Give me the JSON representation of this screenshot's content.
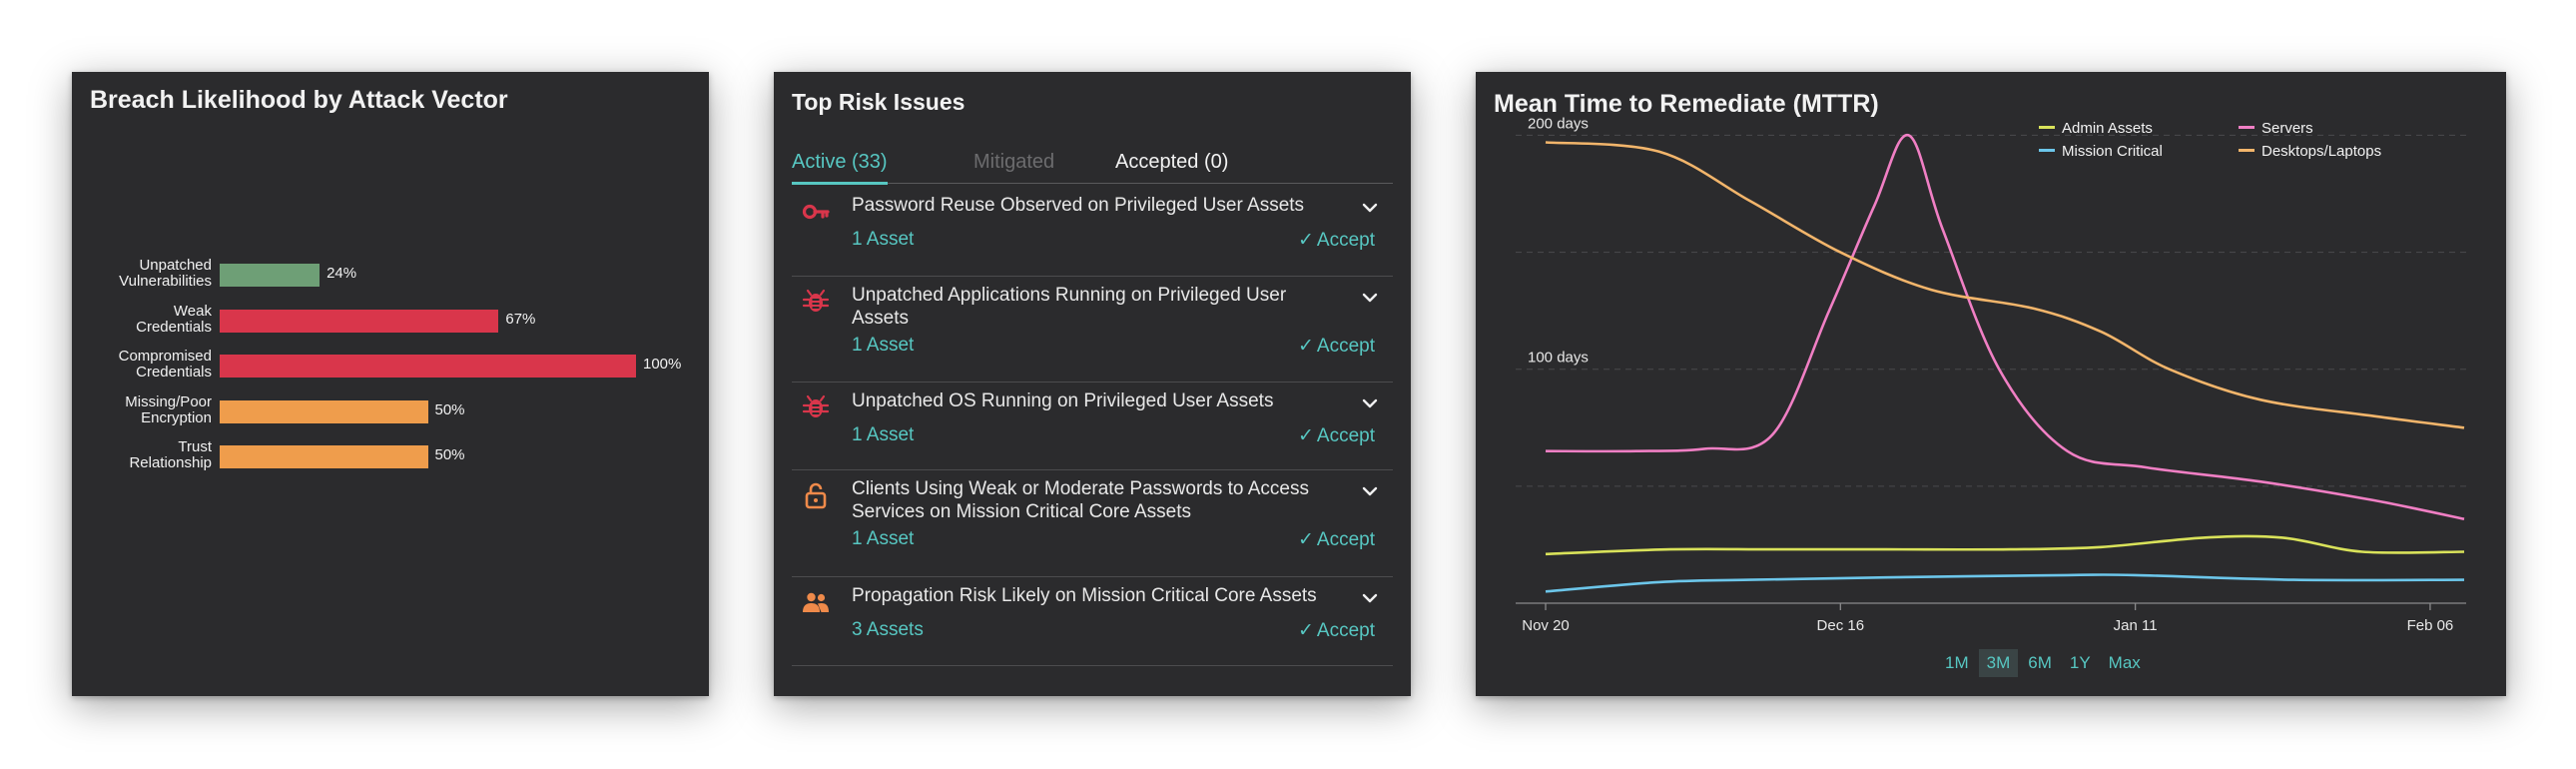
{
  "breach": {
    "title": "Breach Likelihood by Attack Vector",
    "chart_data": {
      "type": "bar",
      "orientation": "horizontal",
      "categories": [
        [
          "Unpatched",
          "Vulnerabilities"
        ],
        [
          "Weak",
          "Credentials"
        ],
        [
          "Compromised",
          "Credentials"
        ],
        [
          "Missing/Poor",
          "Encryption"
        ],
        [
          "Trust",
          "Relationship"
        ]
      ],
      "values": [
        24,
        67,
        100,
        50,
        50
      ],
      "value_labels": [
        "24%",
        "67%",
        "100%",
        "50%",
        "50%"
      ],
      "colors": [
        "#6e9f76",
        "#d9364b",
        "#d9364b",
        "#ef9d4c",
        "#ef9d4c"
      ],
      "xlim": [
        0,
        100
      ]
    }
  },
  "risk": {
    "title": "Top Risk Issues",
    "tabs": [
      {
        "label": "Active (33)",
        "state": "active"
      },
      {
        "label": "Mitigated",
        "state": "disabled"
      },
      {
        "label": "Accepted (0)",
        "state": "normal"
      }
    ],
    "accept_label": "Accept",
    "issues": [
      {
        "icon": "key-icon",
        "icon_color": "#d9364b",
        "title": "Password Reuse Observed on Privileged User Assets",
        "assets": "1 Asset"
      },
      {
        "icon": "bug-icon",
        "icon_color": "#d9364b",
        "title": "Unpatched Applications Running on Privileged User Assets",
        "assets": "1 Asset"
      },
      {
        "icon": "bug-icon",
        "icon_color": "#d9364b",
        "title": "Unpatched OS Running on Privileged User Assets",
        "assets": "1 Asset"
      },
      {
        "icon": "lock-open-icon",
        "icon_color": "#ef8a4a",
        "title": "Clients Using Weak or Moderate Passwords to Access Services on Mission Critical Core Assets",
        "assets": "1 Asset"
      },
      {
        "icon": "people-icon",
        "icon_color": "#ef8a4a",
        "title": "Propagation Risk Likely on Mission Critical Core Assets",
        "assets": "3 Assets"
      }
    ]
  },
  "mttr": {
    "title": "Mean Time to Remediate (MTTR)",
    "range_buttons": [
      {
        "label": "1M",
        "selected": false
      },
      {
        "label": "3M",
        "selected": true
      },
      {
        "label": "6M",
        "selected": false
      },
      {
        "label": "1Y",
        "selected": false
      },
      {
        "label": "Max",
        "selected": false
      }
    ],
    "chart_data": {
      "type": "line",
      "x_tick_labels": [
        "Nov 20",
        "Dec 16",
        "Jan 11",
        "Feb 06"
      ],
      "y_tick_labels": [
        "200 days",
        "100 days"
      ],
      "x_ticks": [
        "2023-11-20",
        "2023-12-16",
        "2024-01-11",
        "2024-02-06"
      ],
      "y_ticks": [
        200,
        100
      ],
      "xlim": [
        "2023-11-20",
        "2024-02-09"
      ],
      "ylim": [
        0,
        210
      ],
      "grid": true,
      "legend_position": "top-right",
      "series": [
        {
          "name": "Admin Assets",
          "color": "#d9e25a",
          "x": [
            "2023-11-20",
            "2023-12-01",
            "2023-12-10",
            "2023-12-20",
            "2023-12-31",
            "2024-01-08",
            "2024-01-17",
            "2024-01-24",
            "2024-01-31",
            "2024-02-09"
          ],
          "y": [
            21,
            23,
            23,
            23,
            23,
            24,
            28,
            28,
            22,
            22
          ]
        },
        {
          "name": "Servers",
          "color": "#f07fc4",
          "x": [
            "2023-11-20",
            "2023-11-28",
            "2023-12-04",
            "2023-12-10",
            "2023-12-15",
            "2023-12-19",
            "2023-12-22",
            "2023-12-25",
            "2023-12-30",
            "2024-01-05",
            "2024-01-12",
            "2024-01-22",
            "2024-02-01",
            "2024-02-09"
          ],
          "y": [
            65,
            65,
            66,
            72,
            125,
            170,
            200,
            160,
            100,
            65,
            58,
            52,
            44,
            36
          ]
        },
        {
          "name": "Mission Critical",
          "color": "#6cc6ea",
          "x": [
            "2023-11-20",
            "2023-11-30",
            "2023-12-08",
            "2023-12-20",
            "2024-01-05",
            "2024-01-11",
            "2024-01-25",
            "2024-02-09"
          ],
          "y": [
            5,
            9,
            10,
            11,
            12,
            12,
            10,
            10
          ]
        },
        {
          "name": "Desktops/Laptops",
          "color": "#f2b56b",
          "x": [
            "2023-11-20",
            "2023-11-30",
            "2023-12-08",
            "2023-12-16",
            "2023-12-24",
            "2024-01-02",
            "2024-01-08",
            "2024-01-14",
            "2024-01-22",
            "2024-02-01",
            "2024-02-09"
          ],
          "y": [
            197,
            193,
            172,
            150,
            134,
            126,
            116,
            100,
            87,
            80,
            75
          ]
        }
      ]
    }
  }
}
